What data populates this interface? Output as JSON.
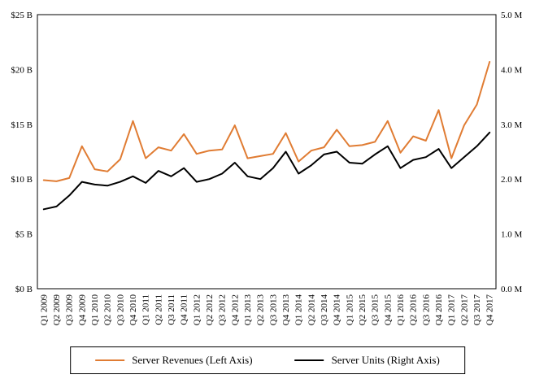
{
  "chart_data": {
    "type": "line",
    "title": "",
    "grid": false,
    "legend_position": "bottom",
    "categories": [
      "Q1 2009",
      "Q2 2009",
      "Q3 2009",
      "Q4 2009",
      "Q1 2010",
      "Q2 2010",
      "Q3 2010",
      "Q4 2010",
      "Q1 2011",
      "Q2 2011",
      "Q3 2011",
      "Q4 2011",
      "Q1 2012",
      "Q2 2012",
      "Q3 2012",
      "Q4 2012",
      "Q1 2013",
      "Q2 2013",
      "Q3 2013",
      "Q4 2013",
      "Q1 2014",
      "Q2 2014",
      "Q3 2014",
      "Q4 2014",
      "Q1 2015",
      "Q2 2015",
      "Q3 2015",
      "Q4 2015",
      "Q1 2016",
      "Q2 2016",
      "Q3 2016",
      "Q4 2016",
      "Q1 2017",
      "Q2 2017",
      "Q3 2017",
      "Q4 2017"
    ],
    "left_axis": {
      "min": 0,
      "max": 25,
      "ticks": [
        "$0 B",
        "$5 B",
        "$10 B",
        "$15 B",
        "$20 B",
        "$25 B"
      ]
    },
    "right_axis": {
      "min": 0,
      "max": 5,
      "ticks": [
        "0.0 M",
        "1.0 M",
        "2.0 M",
        "3.0 M",
        "4.0 M",
        "5.0 M"
      ]
    },
    "series": [
      {
        "name": "Server Revenues (Left Axis)",
        "axis": "left",
        "color": "#E07C33",
        "values": [
          9.9,
          9.8,
          10.1,
          13.0,
          10.9,
          10.7,
          11.8,
          15.3,
          11.9,
          12.9,
          12.6,
          14.1,
          12.3,
          12.6,
          12.7,
          14.9,
          11.9,
          12.1,
          12.3,
          14.2,
          11.6,
          12.6,
          12.9,
          14.5,
          13.0,
          13.1,
          13.4,
          15.3,
          12.4,
          13.9,
          13.5,
          16.3,
          11.9,
          14.9,
          16.8,
          20.7
        ]
      },
      {
        "name": "Server Units (Right Axis)",
        "axis": "right",
        "color": "#000000",
        "values": [
          1.45,
          1.5,
          1.7,
          1.95,
          1.9,
          1.88,
          1.95,
          2.05,
          1.93,
          2.15,
          2.05,
          2.2,
          1.95,
          2.0,
          2.1,
          2.3,
          2.05,
          2.0,
          2.2,
          2.5,
          2.1,
          2.25,
          2.45,
          2.5,
          2.3,
          2.28,
          2.45,
          2.6,
          2.2,
          2.35,
          2.4,
          2.55,
          2.2,
          2.4,
          2.6,
          2.85
        ]
      }
    ]
  }
}
